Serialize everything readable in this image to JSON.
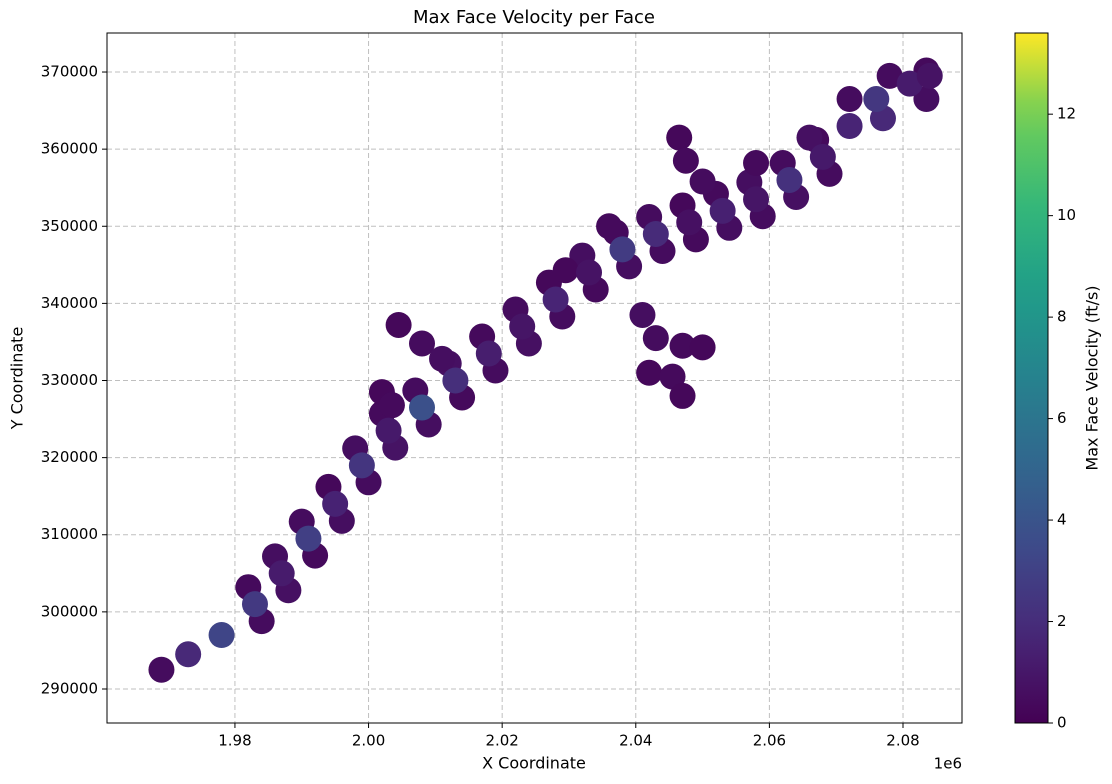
{
  "chart_data": {
    "type": "scatter",
    "title": "Max Face Velocity per Face",
    "x_label": "X Coordinate",
    "y_label": "Y Coordinate",
    "x_offset_label": "1e6",
    "colorbar_label": "Max Face Velocity (ft/s)",
    "colormap": "viridis",
    "grid": true,
    "xlim": [
      1960850,
      2088830
    ],
    "ylim": [
      285590,
      375060
    ],
    "clim": [
      0,
      13.6
    ],
    "xticks": [
      {
        "value": 1980000,
        "label": "1.98"
      },
      {
        "value": 2000000,
        "label": "2.00"
      },
      {
        "value": 2020000,
        "label": "2.02"
      },
      {
        "value": 2040000,
        "label": "2.04"
      },
      {
        "value": 2060000,
        "label": "2.06"
      },
      {
        "value": 2080000,
        "label": "2.08"
      }
    ],
    "yticks": [
      290000,
      300000,
      310000,
      320000,
      330000,
      340000,
      350000,
      360000,
      370000
    ],
    "cticks": [
      0,
      2,
      4,
      6,
      8,
      10,
      12
    ],
    "x": [
      1982000,
      1986000,
      1990000,
      1994000,
      1998000,
      2002000,
      2007000,
      2012000,
      2017000,
      2022000,
      2027000,
      2032000,
      2037000,
      2042000,
      2047000,
      2052000,
      2057000,
      2062000,
      2067000,
      1984000,
      1988000,
      1992000,
      1996000,
      2000000,
      2004000,
      2009000,
      2014000,
      2019000,
      2024000,
      2029000,
      2034000,
      2039000,
      2044000,
      2049000,
      2054000,
      2059000,
      2064000,
      2069000,
      2002000,
      2003500,
      2004500,
      2008000,
      2011000,
      2046500,
      2047500,
      2050000,
      2041000,
      2043000,
      2047000,
      2050000,
      2042000,
      2045500,
      2047000,
      2036000,
      2029500,
      2058000,
      2078000,
      2083500,
      2083500,
      2077000,
      2072000,
      2066000,
      1969000,
      1973000,
      1978000,
      1983000,
      1987000,
      1991000,
      1995000,
      1999000,
      2003000,
      2008000,
      2013000,
      2018000,
      2023000,
      2028000,
      2033000,
      2038000,
      2043000,
      2048000,
      2053000,
      2058000,
      2063000,
      2068000,
      2072000,
      2076000,
      2081000,
      2084000
    ],
    "y": [
      303200,
      307200,
      311700,
      316200,
      321200,
      325700,
      328700,
      332200,
      335700,
      339200,
      342700,
      346200,
      349200,
      351200,
      352700,
      354200,
      355700,
      358200,
      361200,
      298800,
      302800,
      307300,
      311800,
      316800,
      321300,
      324300,
      327800,
      331300,
      334800,
      338300,
      341800,
      344800,
      346800,
      348300,
      349800,
      351300,
      353800,
      356800,
      328500,
      326800,
      337200,
      334800,
      332800,
      361500,
      358500,
      355800,
      338500,
      335500,
      334500,
      334300,
      331000,
      330500,
      328000,
      350000,
      344300,
      358200,
      369500,
      370200,
      366500,
      364000,
      366500,
      361500,
      292500,
      294500,
      297000,
      301000,
      305000,
      309500,
      314000,
      319000,
      323500,
      326500,
      330000,
      333500,
      337000,
      340500,
      344000,
      347000,
      349000,
      350500,
      352000,
      353500,
      356000,
      359000,
      363000,
      366500,
      368500,
      369500
    ],
    "values": [
      0.4,
      0.6,
      0.5,
      0.3,
      0.6,
      0.4,
      0.5,
      0.7,
      0.4,
      0.5,
      0.3,
      0.6,
      0.4,
      0.5,
      0.3,
      0.4,
      0.6,
      0.5,
      0.4,
      0.5,
      0.7,
      0.4,
      0.6,
      0.5,
      0.8,
      0.6,
      0.4,
      0.5,
      0.7,
      0.5,
      0.4,
      0.6,
      0.5,
      0.4,
      0.6,
      0.5,
      0.7,
      0.5,
      0.3,
      0.4,
      0.3,
      0.5,
      0.6,
      0.3,
      0.4,
      0.5,
      0.6,
      0.5,
      0.4,
      0.3,
      0.3,
      0.4,
      0.3,
      0.4,
      0.3,
      0.4,
      0.5,
      0.4,
      0.6,
      1.8,
      0.5,
      0.7,
      0.5,
      1.8,
      3.2,
      2.6,
      1.2,
      2.9,
      1.5,
      2.4,
      1.1,
      3.8,
      2.1,
      1.3,
      0.9,
      1.6,
      0.8,
      2.7,
      1.9,
      0.7,
      1.4,
      0.9,
      2.2,
      1.1,
      1.6,
      2.5,
      1.2,
      0.8
    ]
  }
}
